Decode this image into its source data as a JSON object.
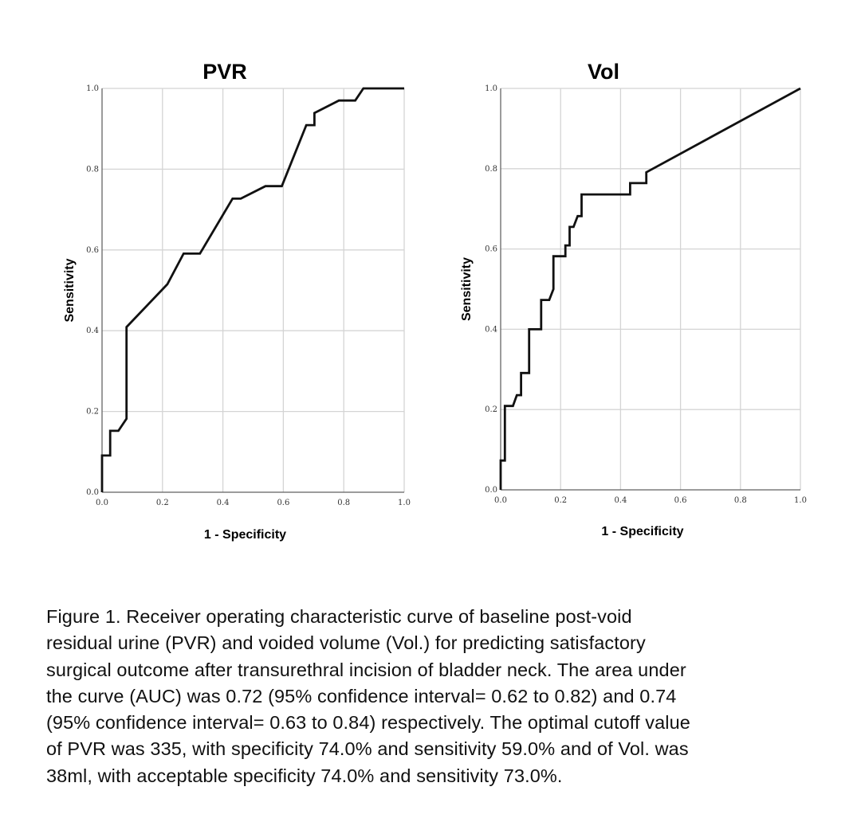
{
  "chart_data": [
    {
      "type": "line",
      "title": "PVR",
      "xlabel": "1 - Specificity",
      "ylabel": "Sensitivity",
      "xlim": [
        0,
        1
      ],
      "ylim": [
        0,
        1
      ],
      "grid": true,
      "xticks": [
        "0.0",
        "0.2",
        "0.4",
        "0.6",
        "0.8",
        "1.0"
      ],
      "yticks": [
        "0.0",
        "0.2",
        "0.4",
        "0.6",
        "0.8",
        "1.0"
      ],
      "series": [
        {
          "x": [
            0.0,
            0.0,
            0.027,
            0.027,
            0.054,
            0.081,
            0.081,
            0.216,
            0.27,
            0.324,
            0.432,
            0.459,
            0.541,
            0.595,
            0.676,
            0.703,
            0.703,
            0.784,
            0.811,
            0.838,
            0.865,
            0.865,
            1.0
          ],
          "y": [
            0.0,
            0.091,
            0.091,
            0.152,
            0.152,
            0.182,
            0.409,
            0.515,
            0.591,
            0.591,
            0.727,
            0.727,
            0.758,
            0.758,
            0.909,
            0.909,
            0.939,
            0.97,
            0.97,
            0.97,
            1.0,
            1.0,
            1.0
          ]
        }
      ]
    },
    {
      "type": "line",
      "title": "Vol",
      "xlabel": "1 - Specificity",
      "ylabel": "Sensitivity",
      "xlim": [
        0,
        1
      ],
      "ylim": [
        0,
        1
      ],
      "grid": true,
      "xticks": [
        "0.0",
        "0.2",
        "0.4",
        "0.6",
        "0.8",
        "1.0"
      ],
      "yticks": [
        "0.0",
        "0.2",
        "0.4",
        "0.6",
        "0.8",
        "1.0"
      ],
      "series": [
        {
          "x": [
            0.0,
            0.0,
            0.014,
            0.014,
            0.041,
            0.054,
            0.068,
            0.068,
            0.095,
            0.095,
            0.135,
            0.135,
            0.162,
            0.176,
            0.176,
            0.216,
            0.216,
            0.23,
            0.23,
            0.243,
            0.257,
            0.27,
            0.27,
            0.432,
            0.432,
            0.486,
            0.486,
            1.0
          ],
          "y": [
            0.0,
            0.073,
            0.073,
            0.209,
            0.209,
            0.236,
            0.236,
            0.291,
            0.291,
            0.4,
            0.4,
            0.473,
            0.473,
            0.5,
            0.582,
            0.582,
            0.609,
            0.609,
            0.655,
            0.655,
            0.682,
            0.682,
            0.736,
            0.736,
            0.764,
            0.764,
            0.791,
            1.0
          ]
        }
      ]
    }
  ],
  "caption": {
    "lines": [
      "Figure 1. Receiver operating characteristic curve of baseline post-void",
      "residual urine (PVR) and voided volume (Vol.) for predicting satisfactory",
      "surgical outcome after transurethral incision of bladder neck. The area under",
      "the curve (AUC) was 0.72 (95% confidence interval= 0.62 to 0.82) and 0.74",
      "(95% confidence interval= 0.63 to 0.84) respectively. The optimal cutoff value",
      "of PVR was 335, with specificity 74.0% and sensitivity 59.0% and of Vol. was",
      "38ml, with acceptable specificity 74.0% and sensitivity 73.0%."
    ]
  }
}
